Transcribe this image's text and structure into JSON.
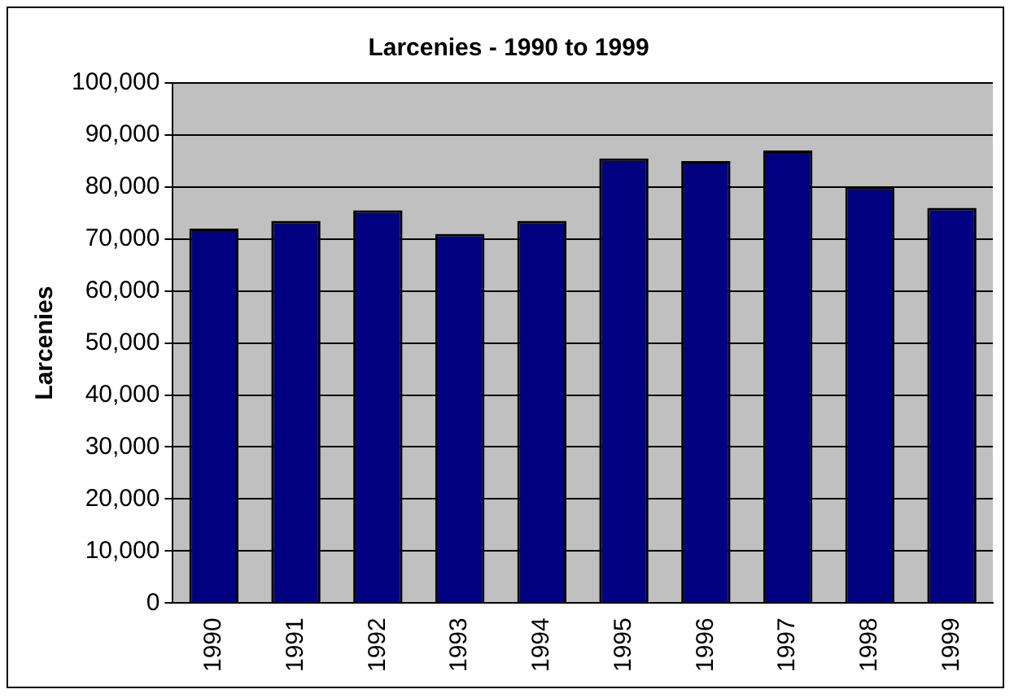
{
  "chart_data": {
    "type": "bar",
    "title": "Larcenies - 1990 to 1999",
    "ylabel": "Larcenies",
    "categories": [
      "1990",
      "1991",
      "1992",
      "1993",
      "1994",
      "1995",
      "1996",
      "1997",
      "1998",
      "1999"
    ],
    "values": [
      72000,
      73500,
      75500,
      71000,
      73500,
      85500,
      85000,
      87000,
      80000,
      76000
    ],
    "color": "#000080",
    "ylim": [
      0,
      100000
    ],
    "yticks": [
      0,
      {
        "value": 10000,
        "label": "10,000"
      },
      {
        "value": 20000,
        "label": "20,000"
      },
      {
        "value": 30000,
        "label": "30,000"
      },
      {
        "value": 40000,
        "label": "40,000"
      },
      {
        "value": 50000,
        "label": "50,000"
      },
      {
        "value": 60000,
        "label": "60,000"
      },
      {
        "value": 70000,
        "label": "70,000"
      },
      {
        "value": 80000,
        "label": "80,000"
      },
      {
        "value": 90000,
        "label": "90,000"
      },
      {
        "value": 100000,
        "label": "100,000"
      }
    ],
    "grid": "y",
    "legend": false
  }
}
